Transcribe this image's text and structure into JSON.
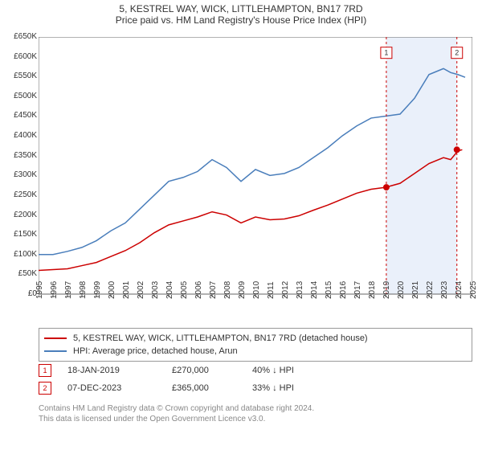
{
  "title": "5, KESTREL WAY, WICK, LITTLEHAMPTON, BN17 7RD",
  "subtitle": "Price paid vs. HM Land Registry's House Price Index (HPI)",
  "chart": {
    "type": "line",
    "background_color": "#ffffff",
    "border_color": "#666666",
    "highlight_band_color": "#eaf0fa",
    "highlight_band_x": [
      2019.05,
      2023.93
    ],
    "label_fontsize": 10,
    "ylim": [
      0,
      650000
    ],
    "ytick_step": 50000,
    "yticks_labels": [
      "£0",
      "£50K",
      "£100K",
      "£150K",
      "£200K",
      "£250K",
      "£300K",
      "£350K",
      "£400K",
      "£450K",
      "£500K",
      "£550K",
      "£600K",
      "£650K"
    ],
    "xlim": [
      1995,
      2025
    ],
    "xticks": [
      1995,
      1996,
      1997,
      1998,
      1999,
      2000,
      2001,
      2002,
      2003,
      2004,
      2005,
      2006,
      2007,
      2008,
      2009,
      2010,
      2011,
      2012,
      2013,
      2014,
      2015,
      2016,
      2017,
      2018,
      2019,
      2020,
      2021,
      2022,
      2023,
      2024,
      2025
    ],
    "series": [
      {
        "name": "5, KESTREL WAY, WICK, LITTLEHAMPTON, BN17 7RD (detached house)",
        "color": "#cc0000",
        "line_width": 1.5,
        "data": [
          [
            1995,
            60000
          ],
          [
            1996,
            62000
          ],
          [
            1997,
            64000
          ],
          [
            1998,
            72000
          ],
          [
            1999,
            80000
          ],
          [
            2000,
            95000
          ],
          [
            2001,
            110000
          ],
          [
            2002,
            130000
          ],
          [
            2003,
            155000
          ],
          [
            2004,
            175000
          ],
          [
            2005,
            185000
          ],
          [
            2006,
            195000
          ],
          [
            2007,
            208000
          ],
          [
            2008,
            200000
          ],
          [
            2009,
            180000
          ],
          [
            2010,
            195000
          ],
          [
            2011,
            188000
          ],
          [
            2012,
            190000
          ],
          [
            2013,
            198000
          ],
          [
            2014,
            212000
          ],
          [
            2015,
            225000
          ],
          [
            2016,
            240000
          ],
          [
            2017,
            255000
          ],
          [
            2018,
            265000
          ],
          [
            2019,
            270000
          ],
          [
            2020,
            280000
          ],
          [
            2021,
            305000
          ],
          [
            2022,
            330000
          ],
          [
            2023,
            345000
          ],
          [
            2023.5,
            340000
          ],
          [
            2024,
            362000
          ],
          [
            2024.3,
            365000
          ]
        ]
      },
      {
        "name": "HPI: Average price, detached house, Arun",
        "color": "#4a7ebb",
        "line_width": 1.5,
        "data": [
          [
            1995,
            100000
          ],
          [
            1996,
            100000
          ],
          [
            1997,
            108000
          ],
          [
            1998,
            118000
          ],
          [
            1999,
            135000
          ],
          [
            2000,
            160000
          ],
          [
            2001,
            180000
          ],
          [
            2002,
            215000
          ],
          [
            2003,
            250000
          ],
          [
            2004,
            285000
          ],
          [
            2005,
            295000
          ],
          [
            2006,
            310000
          ],
          [
            2007,
            340000
          ],
          [
            2008,
            320000
          ],
          [
            2009,
            285000
          ],
          [
            2010,
            315000
          ],
          [
            2011,
            300000
          ],
          [
            2012,
            305000
          ],
          [
            2013,
            320000
          ],
          [
            2014,
            345000
          ],
          [
            2015,
            370000
          ],
          [
            2016,
            400000
          ],
          [
            2017,
            425000
          ],
          [
            2018,
            445000
          ],
          [
            2019,
            450000
          ],
          [
            2020,
            455000
          ],
          [
            2021,
            495000
          ],
          [
            2022,
            555000
          ],
          [
            2023,
            570000
          ],
          [
            2023.5,
            560000
          ],
          [
            2024,
            555000
          ],
          [
            2024.5,
            548000
          ]
        ]
      }
    ],
    "sale_markers": [
      {
        "num": "1",
        "x": 2019.05,
        "y": 270000,
        "color": "#cc0000",
        "label_y": 610000
      },
      {
        "num": "2",
        "x": 2023.93,
        "y": 365000,
        "color": "#cc0000",
        "label_y": 610000
      }
    ]
  },
  "legend": {
    "items": [
      {
        "color": "#cc0000",
        "label": "5, KESTREL WAY, WICK, LITTLEHAMPTON, BN17 7RD (detached house)"
      },
      {
        "color": "#4a7ebb",
        "label": "HPI: Average price, detached house, Arun"
      }
    ]
  },
  "sales": [
    {
      "num": "1",
      "color": "#cc0000",
      "date": "18-JAN-2019",
      "price": "£270,000",
      "change": "40% ↓ HPI"
    },
    {
      "num": "2",
      "color": "#cc0000",
      "date": "07-DEC-2023",
      "price": "£365,000",
      "change": "33% ↓ HPI"
    }
  ],
  "footer": {
    "line1": "Contains HM Land Registry data © Crown copyright and database right 2024.",
    "line2": "This data is licensed under the Open Government Licence v3.0."
  }
}
